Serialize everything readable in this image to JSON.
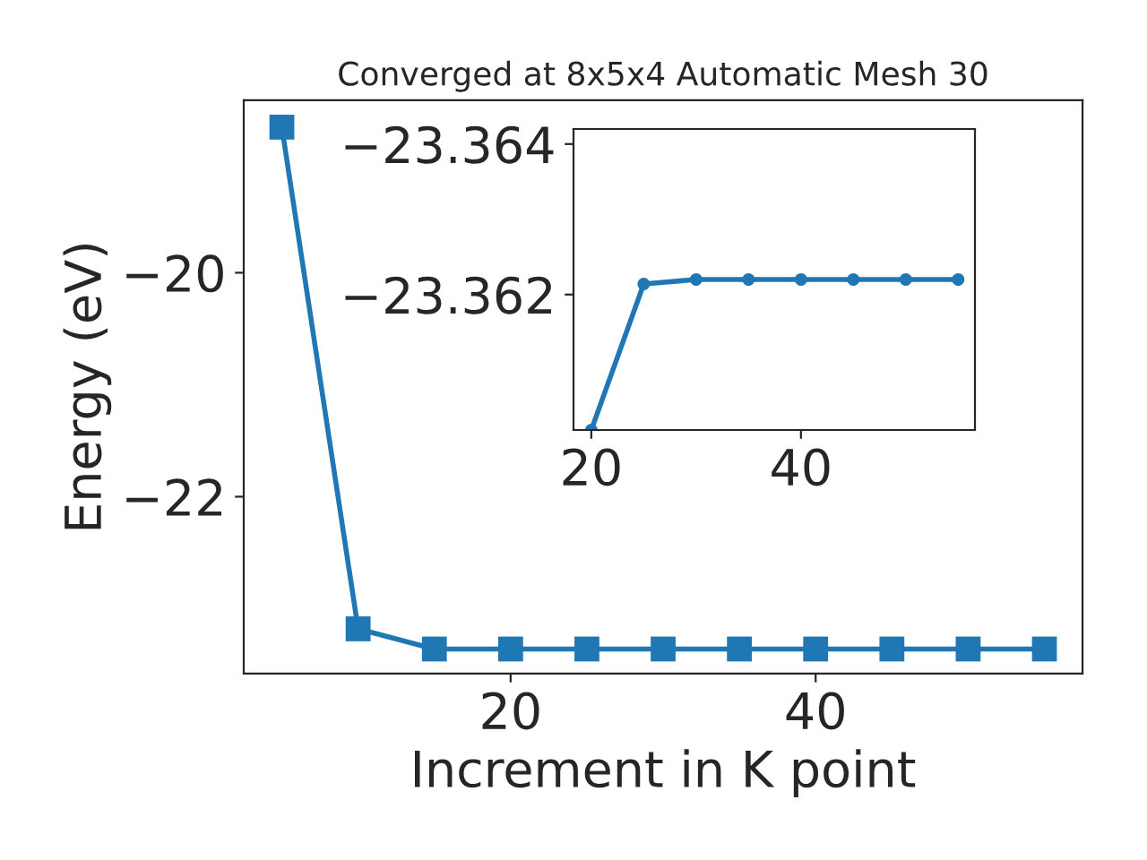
{
  "chart_data": [
    {
      "type": "line",
      "title": "Converged at 8x5x4 Automatic Mesh 30",
      "xlabel": "Increment in K point",
      "ylabel": "Energy (eV)",
      "marker": "square",
      "line_style": "solid",
      "grid": false,
      "legend": false,
      "x": [
        5,
        10,
        15,
        20,
        25,
        30,
        35,
        40,
        45,
        50,
        55
      ],
      "series": [
        {
          "color": "#1f77b4",
          "values": [
            -18.7,
            -23.18,
            -23.36,
            -23.36,
            -23.36,
            -23.36,
            -23.36,
            -23.36,
            -23.36,
            -23.36,
            -23.36
          ]
        }
      ],
      "xlim": [
        2.5,
        57.5
      ],
      "ylim": [
        -23.58,
        -18.46
      ],
      "xticks": [
        20,
        40
      ],
      "yticks": [
        -20,
        -22
      ]
    },
    {
      "type": "line",
      "marker": "circle",
      "line_style": "solid",
      "grid": false,
      "legend": false,
      "x": [
        20,
        25,
        30,
        35,
        40,
        45,
        50,
        55
      ],
      "series": [
        {
          "color": "#1f77b4",
          "values": [
            -23.3602,
            -23.36214,
            -23.3622,
            -23.3622,
            -23.3622,
            -23.3622,
            -23.3622,
            -23.3622
          ]
        }
      ],
      "xlim": [
        18.3,
        56.6
      ],
      "ylim": [
        -23.3602,
        -23.3642
      ],
      "xticks": [
        20,
        40
      ],
      "yticks": [
        -23.364,
        -23.362
      ]
    }
  ]
}
